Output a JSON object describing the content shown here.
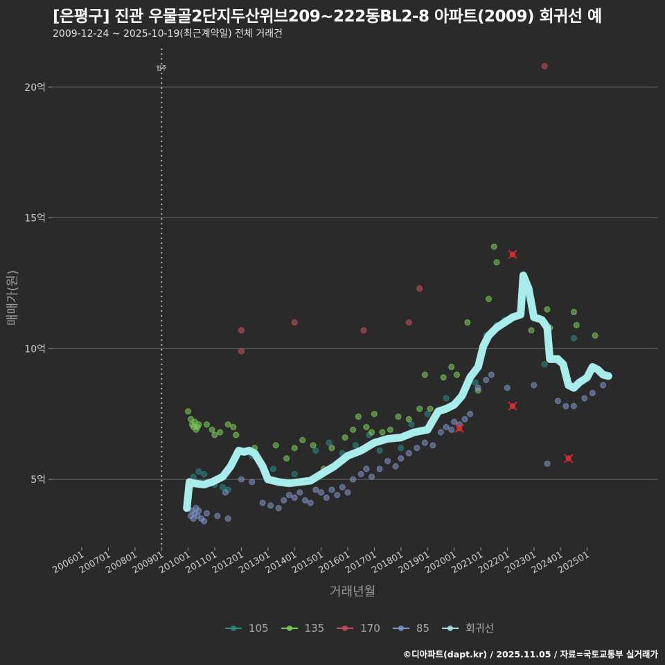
{
  "header": {
    "title": "[은평구] 진관 우물골2단지두산위브209~222동BL2-8 아파트(2009) 회귀선 예",
    "subtitle": "2009-12-24 ~ 2025-10-19(최근계약일) 전체 거래건"
  },
  "footer": {
    "credit": "©디아파트(dapt.kr) / 2025.11.05 / 자료=국토교통부 실거래가"
  },
  "colors": {
    "background": "#2b2a2b",
    "grid": "#6e6e6e",
    "s105": "#2a8a86",
    "s135": "#7ccf5a",
    "s170": "#c8505c",
    "s85": "#7f96c8",
    "regression": "#a8ecec",
    "outlier_x": "#e0202a"
  },
  "chart_data": {
    "type": "scatter",
    "title": "[은평구] 진관 우물골2단지두산위브209~222동BL2-8 아파트(2009) 회귀선 예",
    "subtitle": "2009-12-24 ~ 2025-10-19(최근계약일) 전체 거래건",
    "xlabel": "거래년월",
    "ylabel": "매매가(원)",
    "x_ticks": [
      "200601",
      "200701",
      "200801",
      "200901",
      "201001",
      "201101",
      "201201",
      "201301",
      "201401",
      "201501",
      "201601",
      "201701",
      "201801",
      "201901",
      "202001",
      "202101",
      "202201",
      "202301",
      "202401",
      "202501"
    ],
    "y_ticks": [
      {
        "value": 5,
        "label": "5억"
      },
      {
        "value": 10,
        "label": "10억"
      },
      {
        "value": 15,
        "label": "15억"
      },
      {
        "value": 20,
        "label": "20억"
      }
    ],
    "ylim": [
      2.5,
      21.5
    ],
    "xlim": [
      2005.3,
      2026.1
    ],
    "grid": true,
    "legend_position": "bottom",
    "annotation": {
      "label": "입주",
      "x": 2009.0
    },
    "legend": [
      {
        "key": "s105",
        "label": "105"
      },
      {
        "key": "s135",
        "label": "135"
      },
      {
        "key": "s170",
        "label": "170"
      },
      {
        "key": "s85",
        "label": "85"
      },
      {
        "key": "regression",
        "label": "회귀선"
      }
    ],
    "series": [
      {
        "name": "105",
        "key": "s105",
        "points": [
          [
            2010.2,
            5.1
          ],
          [
            2010.4,
            5.3
          ],
          [
            2010.6,
            5.2
          ],
          [
            2010.8,
            4.9
          ],
          [
            2011.0,
            4.8
          ],
          [
            2011.3,
            4.7
          ],
          [
            2011.5,
            4.6
          ],
          [
            2012.4,
            5.9
          ],
          [
            2013.2,
            5.4
          ],
          [
            2014.0,
            5.2
          ],
          [
            2014.8,
            6.1
          ],
          [
            2015.3,
            6.4
          ],
          [
            2015.8,
            6.0
          ],
          [
            2016.3,
            6.3
          ],
          [
            2016.8,
            6.7
          ],
          [
            2017.2,
            6.1
          ],
          [
            2018.0,
            6.2
          ],
          [
            2018.4,
            7.1
          ],
          [
            2019.0,
            7.5
          ],
          [
            2019.7,
            8.1
          ],
          [
            2020.3,
            8.3
          ],
          [
            2020.8,
            8.7
          ],
          [
            2021.2,
            10.5
          ],
          [
            2021.6,
            10.9
          ],
          [
            2021.9,
            11.1
          ],
          [
            2022.5,
            11.3
          ],
          [
            2023.4,
            9.4
          ],
          [
            2023.9,
            9.5
          ],
          [
            2024.5,
            10.4
          ]
        ]
      },
      {
        "name": "135",
        "key": "s135",
        "points": [
          [
            2010.0,
            7.6
          ],
          [
            2010.1,
            7.3
          ],
          [
            2010.15,
            7.1
          ],
          [
            2010.2,
            7.0
          ],
          [
            2010.25,
            7.2
          ],
          [
            2010.3,
            6.9
          ],
          [
            2010.35,
            7.0
          ],
          [
            2010.4,
            7.1
          ],
          [
            2010.7,
            7.1
          ],
          [
            2010.9,
            6.9
          ],
          [
            2011.0,
            6.7
          ],
          [
            2011.2,
            6.8
          ],
          [
            2011.5,
            7.1
          ],
          [
            2011.7,
            7.0
          ],
          [
            2011.8,
            6.7
          ],
          [
            2012.5,
            6.2
          ],
          [
            2013.3,
            6.3
          ],
          [
            2013.7,
            5.8
          ],
          [
            2014.0,
            6.2
          ],
          [
            2014.3,
            6.5
          ],
          [
            2014.7,
            6.3
          ],
          [
            2015.1,
            5.4
          ],
          [
            2015.4,
            6.2
          ],
          [
            2015.9,
            6.6
          ],
          [
            2016.2,
            6.9
          ],
          [
            2016.4,
            7.4
          ],
          [
            2016.7,
            7.0
          ],
          [
            2016.9,
            6.8
          ],
          [
            2017.0,
            7.5
          ],
          [
            2017.3,
            6.8
          ],
          [
            2017.6,
            6.9
          ],
          [
            2017.9,
            7.4
          ],
          [
            2018.3,
            7.3
          ],
          [
            2018.7,
            7.7
          ],
          [
            2018.9,
            9.0
          ],
          [
            2019.1,
            7.7
          ],
          [
            2019.6,
            8.9
          ],
          [
            2019.9,
            9.3
          ],
          [
            2020.1,
            9.0
          ],
          [
            2020.5,
            11.0
          ],
          [
            2020.9,
            8.4
          ],
          [
            2021.3,
            11.9
          ],
          [
            2021.5,
            13.9
          ],
          [
            2021.6,
            13.3
          ],
          [
            2022.9,
            10.7
          ],
          [
            2023.5,
            11.5
          ],
          [
            2023.6,
            10.8
          ],
          [
            2024.5,
            11.4
          ],
          [
            2024.6,
            10.9
          ],
          [
            2025.3,
            10.5
          ]
        ]
      },
      {
        "name": "170",
        "key": "s170",
        "points": [
          [
            2012.0,
            10.7
          ],
          [
            2012.0,
            9.9
          ],
          [
            2014.0,
            11.0
          ],
          [
            2016.6,
            10.7
          ],
          [
            2018.3,
            11.0
          ],
          [
            2018.7,
            12.3
          ],
          [
            2023.4,
            20.8
          ]
        ]
      },
      {
        "name": "85",
        "key": "s85",
        "points": [
          [
            2010.0,
            3.9
          ],
          [
            2010.1,
            3.6
          ],
          [
            2010.15,
            3.8
          ],
          [
            2010.2,
            3.5
          ],
          [
            2010.25,
            3.7
          ],
          [
            2010.3,
            3.9
          ],
          [
            2010.35,
            3.6
          ],
          [
            2010.4,
            3.8
          ],
          [
            2010.5,
            3.5
          ],
          [
            2010.6,
            3.4
          ],
          [
            2010.7,
            3.7
          ],
          [
            2011.1,
            3.6
          ],
          [
            2011.5,
            3.5
          ],
          [
            2011.4,
            4.5
          ],
          [
            2012.0,
            5.0
          ],
          [
            2012.4,
            4.9
          ],
          [
            2012.8,
            4.1
          ],
          [
            2013.1,
            4.0
          ],
          [
            2013.4,
            3.9
          ],
          [
            2013.6,
            4.2
          ],
          [
            2013.8,
            4.4
          ],
          [
            2014.0,
            4.3
          ],
          [
            2014.2,
            4.5
          ],
          [
            2014.4,
            4.2
          ],
          [
            2014.6,
            4.1
          ],
          [
            2014.8,
            4.6
          ],
          [
            2015.0,
            4.5
          ],
          [
            2015.2,
            4.3
          ],
          [
            2015.4,
            4.6
          ],
          [
            2015.6,
            4.4
          ],
          [
            2015.8,
            4.7
          ],
          [
            2016.0,
            4.5
          ],
          [
            2016.2,
            5.0
          ],
          [
            2016.5,
            5.2
          ],
          [
            2016.7,
            5.4
          ],
          [
            2016.9,
            5.1
          ],
          [
            2017.2,
            5.4
          ],
          [
            2017.5,
            5.7
          ],
          [
            2017.8,
            5.5
          ],
          [
            2018.0,
            5.8
          ],
          [
            2018.3,
            6.0
          ],
          [
            2018.6,
            6.2
          ],
          [
            2018.9,
            6.4
          ],
          [
            2019.2,
            6.3
          ],
          [
            2019.5,
            6.8
          ],
          [
            2019.7,
            7.0
          ],
          [
            2019.9,
            6.9
          ],
          [
            2020.0,
            7.2
          ],
          [
            2020.2,
            7.1
          ],
          [
            2020.4,
            7.3
          ],
          [
            2020.6,
            7.5
          ],
          [
            2020.9,
            8.5
          ],
          [
            2021.2,
            8.8
          ],
          [
            2021.4,
            9.0
          ],
          [
            2022.0,
            8.5
          ],
          [
            2023.0,
            8.6
          ],
          [
            2023.5,
            5.6
          ],
          [
            2023.9,
            8.0
          ],
          [
            2024.2,
            7.8
          ],
          [
            2024.5,
            7.8
          ],
          [
            2024.9,
            8.1
          ],
          [
            2025.2,
            8.3
          ],
          [
            2025.6,
            8.6
          ]
        ]
      }
    ],
    "outliers": [
      [
        2020.2,
        6.95
      ],
      [
        2022.2,
        7.8
      ],
      [
        2024.3,
        5.8
      ],
      [
        2022.2,
        13.6
      ]
    ],
    "regression_line": [
      [
        2009.95,
        3.9
      ],
      [
        2010.05,
        4.9
      ],
      [
        2010.2,
        4.85
      ],
      [
        2010.6,
        4.8
      ],
      [
        2010.9,
        4.9
      ],
      [
        2011.3,
        5.1
      ],
      [
        2011.6,
        5.5
      ],
      [
        2011.9,
        6.1
      ],
      [
        2012.1,
        6.05
      ],
      [
        2012.3,
        6.1
      ],
      [
        2012.5,
        6.0
      ],
      [
        2012.8,
        5.5
      ],
      [
        2013.0,
        5.0
      ],
      [
        2013.4,
        4.9
      ],
      [
        2013.8,
        4.85
      ],
      [
        2014.2,
        4.9
      ],
      [
        2014.6,
        4.95
      ],
      [
        2015.0,
        5.2
      ],
      [
        2015.5,
        5.5
      ],
      [
        2016.0,
        5.9
      ],
      [
        2016.5,
        6.1
      ],
      [
        2017.0,
        6.4
      ],
      [
        2017.5,
        6.55
      ],
      [
        2018.0,
        6.6
      ],
      [
        2018.5,
        6.8
      ],
      [
        2019.0,
        6.9
      ],
      [
        2019.4,
        7.6
      ],
      [
        2019.7,
        7.7
      ],
      [
        2020.0,
        7.85
      ],
      [
        2020.3,
        8.2
      ],
      [
        2020.6,
        8.9
      ],
      [
        2020.9,
        9.3
      ],
      [
        2021.1,
        10.1
      ],
      [
        2021.3,
        10.5
      ],
      [
        2021.6,
        10.8
      ],
      [
        2021.9,
        11.0
      ],
      [
        2022.2,
        11.2
      ],
      [
        2022.5,
        11.3
      ],
      [
        2022.6,
        12.8
      ],
      [
        2022.8,
        12.3
      ],
      [
        2023.0,
        11.2
      ],
      [
        2023.3,
        11.1
      ],
      [
        2023.5,
        10.8
      ],
      [
        2023.6,
        9.6
      ],
      [
        2023.9,
        9.6
      ],
      [
        2024.1,
        9.4
      ],
      [
        2024.3,
        8.6
      ],
      [
        2024.5,
        8.5
      ],
      [
        2024.7,
        8.7
      ],
      [
        2025.0,
        8.9
      ],
      [
        2025.2,
        9.3
      ],
      [
        2025.4,
        9.2
      ],
      [
        2025.6,
        9.0
      ],
      [
        2025.8,
        8.95
      ]
    ]
  }
}
